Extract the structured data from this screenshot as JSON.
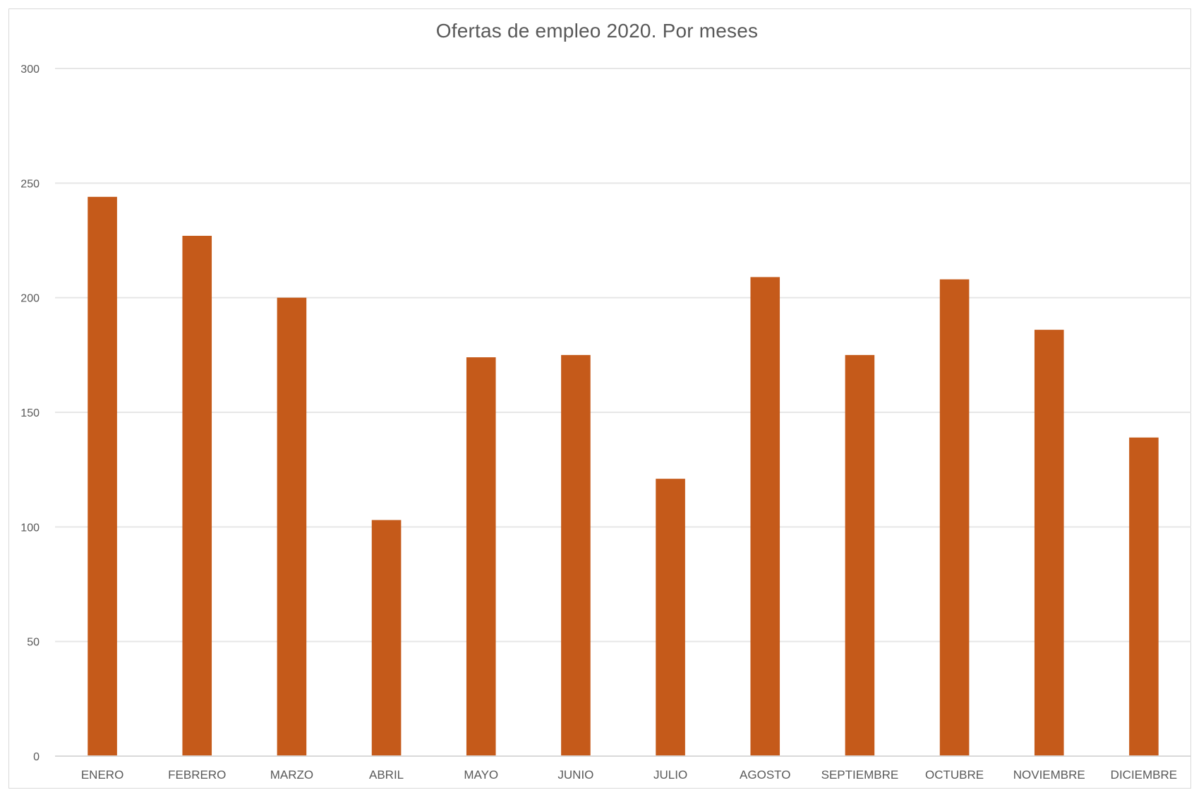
{
  "chart_data": {
    "type": "bar",
    "title": "Ofertas de empleo 2020.  Por meses",
    "xlabel": "",
    "ylabel": "",
    "categories": [
      "ENERO",
      "FEBRERO",
      "MARZO",
      "ABRIL",
      "MAYO",
      "JUNIO",
      "JULIO",
      "AGOSTO",
      "SEPTIEMBRE",
      "OCTUBRE",
      "NOVIEMBRE",
      "DICIEMBRE"
    ],
    "values": [
      244,
      227,
      200,
      103,
      174,
      175,
      121,
      209,
      175,
      208,
      186,
      139
    ],
    "ylim": [
      0,
      300
    ],
    "yticks": [
      "0",
      "50",
      "100",
      "150",
      "200",
      "250",
      "300"
    ],
    "grid": true,
    "legend": "none",
    "bar_color": "#C55A1A",
    "gridline_color": "#e6e6e6"
  }
}
